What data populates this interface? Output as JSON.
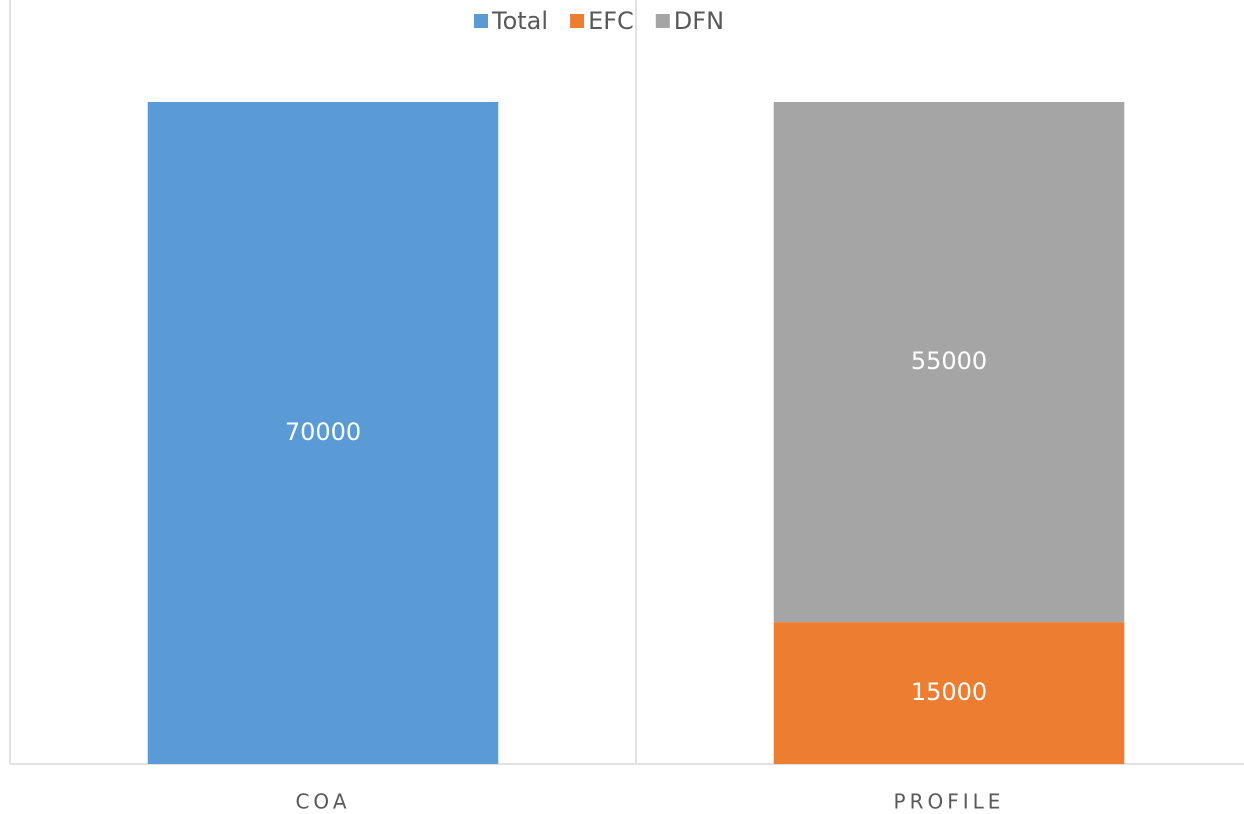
{
  "chart_data": {
    "type": "stacked_bar",
    "categories": [
      "COA",
      "PROFILE"
    ],
    "series": [
      {
        "name": "Total",
        "color": "#5b9bd5",
        "values": [
          70000,
          null
        ]
      },
      {
        "name": "EFC",
        "color": "#ed7d31",
        "values": [
          null,
          15000
        ]
      },
      {
        "name": "DFN",
        "color": "#a5a5a5",
        "values": [
          null,
          55000
        ]
      }
    ],
    "ylim": [
      0,
      80000
    ],
    "legend": "top"
  }
}
